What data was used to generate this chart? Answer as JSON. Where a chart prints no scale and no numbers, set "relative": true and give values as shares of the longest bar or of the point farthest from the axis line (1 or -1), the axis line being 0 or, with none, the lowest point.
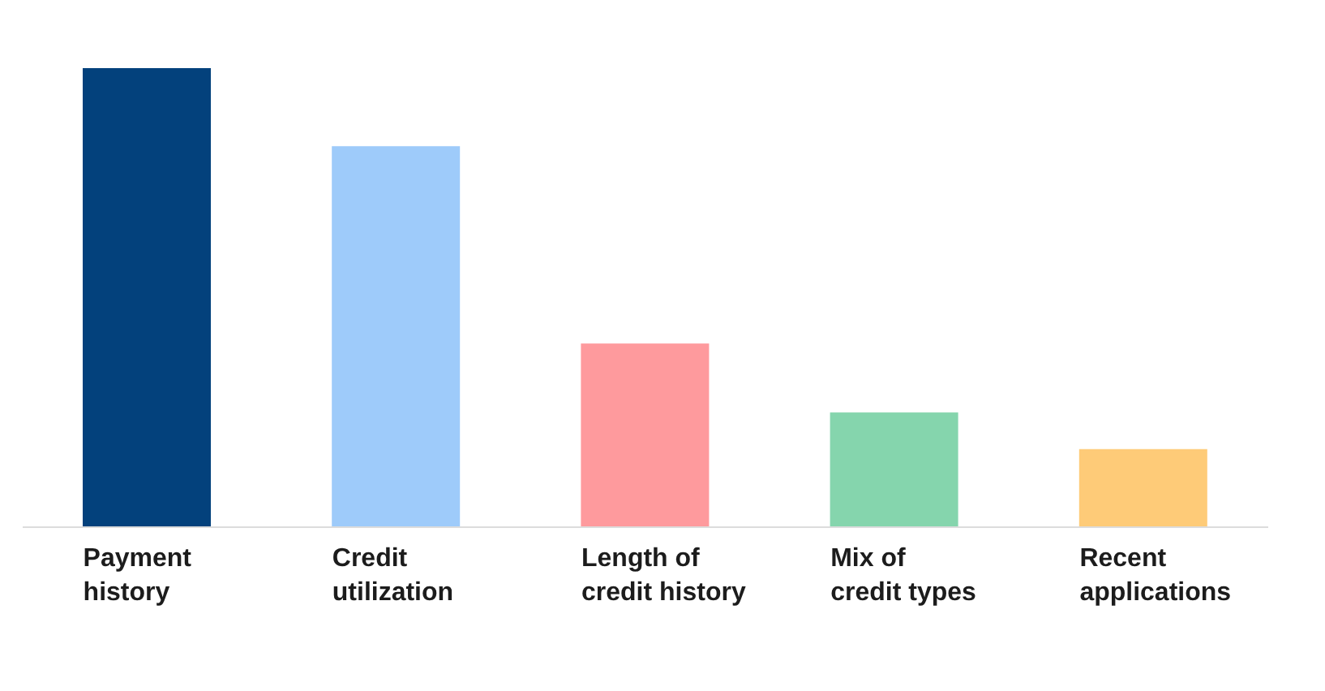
{
  "chart_data": {
    "type": "bar",
    "relative": true,
    "categories": [
      "Payment\nhistory",
      "Credit\nutilization",
      "Length of\ncredit history",
      "Mix of\ncredit types",
      "Recent\napplications"
    ],
    "values": [
      1,
      0.83,
      0.4,
      0.25,
      0.17
    ],
    "colors": [
      "#03417c",
      "#9ecbfa",
      "#fe9a9d",
      "#85d5ad",
      "#fecb78"
    ]
  }
}
